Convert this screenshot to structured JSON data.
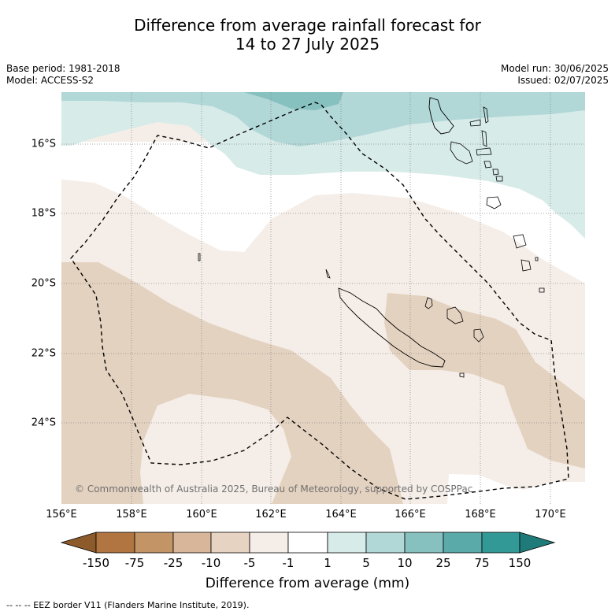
{
  "title_line1": "Difference from average rainfall forecast for",
  "title_line2": "14 to 27 July 2025",
  "base_period": "Base period: 1981-2018",
  "model": "Model: ACCESS-S2",
  "model_run": "Model run: 30/06/2025",
  "issued": "Issued: 02/07/2025",
  "lat_labels": [
    "16°S",
    "18°S",
    "20°S",
    "22°S",
    "24°S"
  ],
  "lon_labels": [
    "156°E",
    "158°E",
    "160°E",
    "162°E",
    "164°E",
    "166°E",
    "168°E",
    "170°E"
  ],
  "credit": "© Commonwealth of Australia 2025, Bureau of Meteorology, supported by COSPPac",
  "colorbar": {
    "title": "Difference from average (mm)",
    "labels": [
      "-150",
      "-75",
      "-25",
      "-10",
      "-5",
      "-1",
      "1",
      "5",
      "10",
      "25",
      "75",
      "150"
    ],
    "colors": [
      "#8c5a2b",
      "#b07540",
      "#c39466",
      "#d7b699",
      "#e6d3c2",
      "#f5eee8",
      "#ffffff",
      "#d7ebe9",
      "#b1d7d6",
      "#86c1c0",
      "#5aaaa9",
      "#339996",
      "#1f7b79"
    ]
  },
  "eez_legend": "--  --  -- EEZ border V11 (Flanders Marine Institute, 2019)."
}
